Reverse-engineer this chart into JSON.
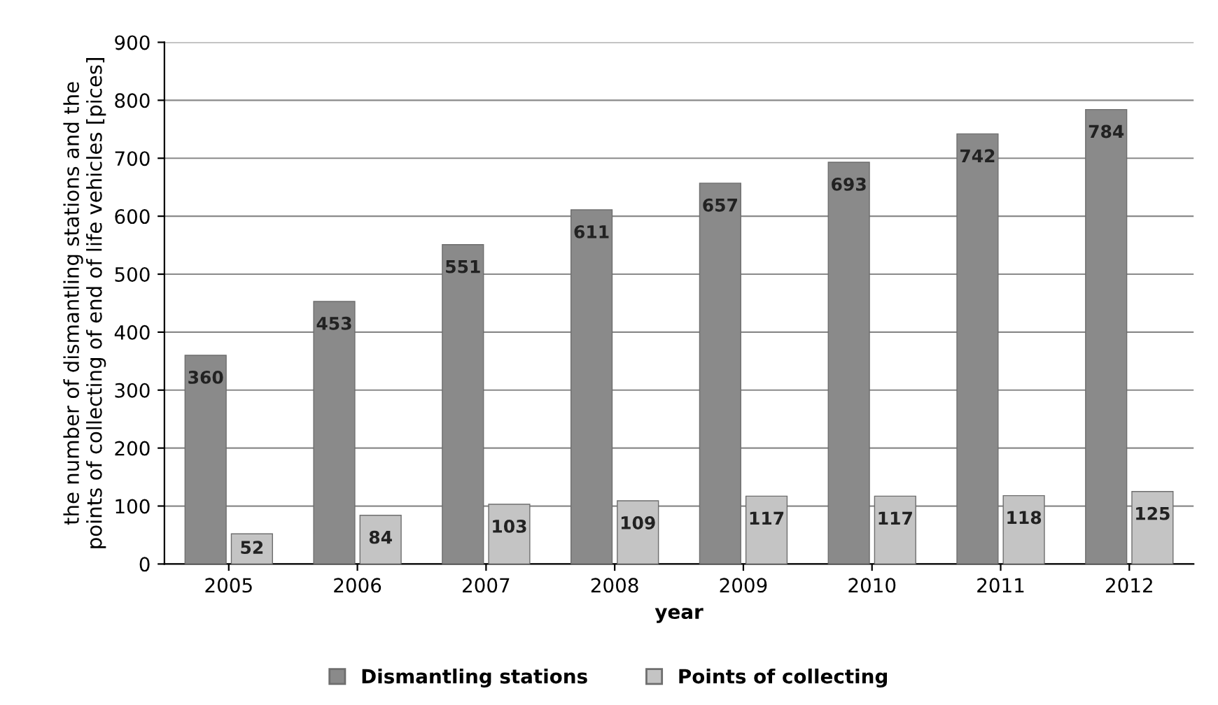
{
  "chart_data": {
    "type": "bar",
    "xlabel": "year",
    "ylabel": "the number of dismantling stations and the\npoints of collecting of end of life vehicles [pices]",
    "categories": [
      "2005",
      "2006",
      "2007",
      "2008",
      "2009",
      "2010",
      "2011",
      "2012"
    ],
    "series": [
      {
        "name": "Dismantling stations",
        "color": "#8a8a8a",
        "values": [
          360,
          453,
          551,
          611,
          657,
          693,
          742,
          784
        ]
      },
      {
        "name": "Points of collecting",
        "color": "#c4c4c4",
        "values": [
          52,
          84,
          103,
          109,
          117,
          117,
          118,
          125
        ]
      }
    ],
    "ylim": [
      0,
      900
    ],
    "yticks": [
      0,
      100,
      200,
      300,
      400,
      500,
      600,
      700,
      800,
      900
    ],
    "grid": "y",
    "legend": "bottom",
    "data_labels": true
  }
}
